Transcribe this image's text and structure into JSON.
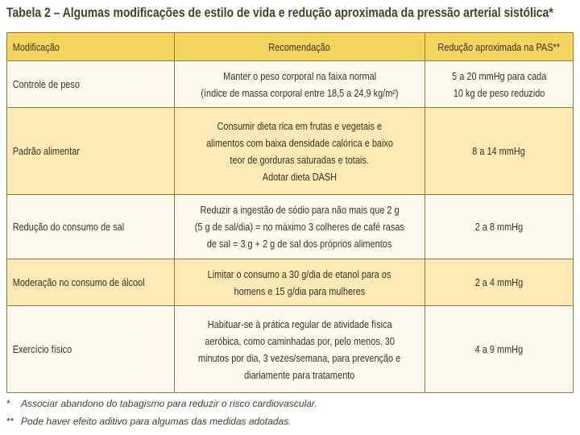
{
  "title": "Tabela 2 – Algumas modificações de estilo de vida e redução aproximada da pressão arterial sistólica*",
  "table": {
    "header": [
      "Modificação",
      "Recomendação",
      "Redução aproximada na PAS**"
    ],
    "rows": [
      [
        [
          "Controle de peso"
        ],
        [
          "Manter o peso corporal na faixa normal",
          "(índice de massa corporal entre 18,5 a 24,9 kg/m²)"
        ],
        [
          "5 a 20 mmHg para cada",
          "10 kg de peso reduzido"
        ]
      ],
      [
        [
          "Padrão alimentar"
        ],
        [
          "Consumir dieta rica em frutas e vegetais e",
          "alimentos com baixa densidade calórica e baixo",
          "teor de gorduras saturadas e totais.",
          "Adotar dieta DASH"
        ],
        [
          "8 a 14 mmHg"
        ]
      ],
      [
        [
          "Redução do consumo de sal"
        ],
        [
          "Reduzir a ingestão de sódio para não mais que 2 g",
          "(5 g de sal/dia) = no máximo 3 colheres de café rasas",
          "de sal = 3 g + 2 g de sal dos próprios alimentos"
        ],
        [
          "2 a 8 mmHg"
        ]
      ],
      [
        [
          "Moderação no consumo de álcool"
        ],
        [
          "Limitar o consumo a 30 g/dia de etanol para os",
          "homens e 15 g/dia para mulheres"
        ],
        [
          "2 a 4 mmHg"
        ]
      ],
      [
        [
          "Exercício físico"
        ],
        [
          "Habituar-se à prática regular de atividade física",
          "aeróbica, como caminhadas por, pelo menos, 30",
          "minutos por dia, 3 vezes/semana, para prevenção e",
          "diariamente para tratamento"
        ],
        [
          "4 a 9 mmHg"
        ]
      ]
    ]
  },
  "footnotes": [
    {
      "mark": "*",
      "text": "Associar abandono do tabagismo para reduzir o risco cardiovascular."
    },
    {
      "mark": "**",
      "text": "Pode haver efeito aditivo para algumas das medidas adotadas."
    }
  ]
}
